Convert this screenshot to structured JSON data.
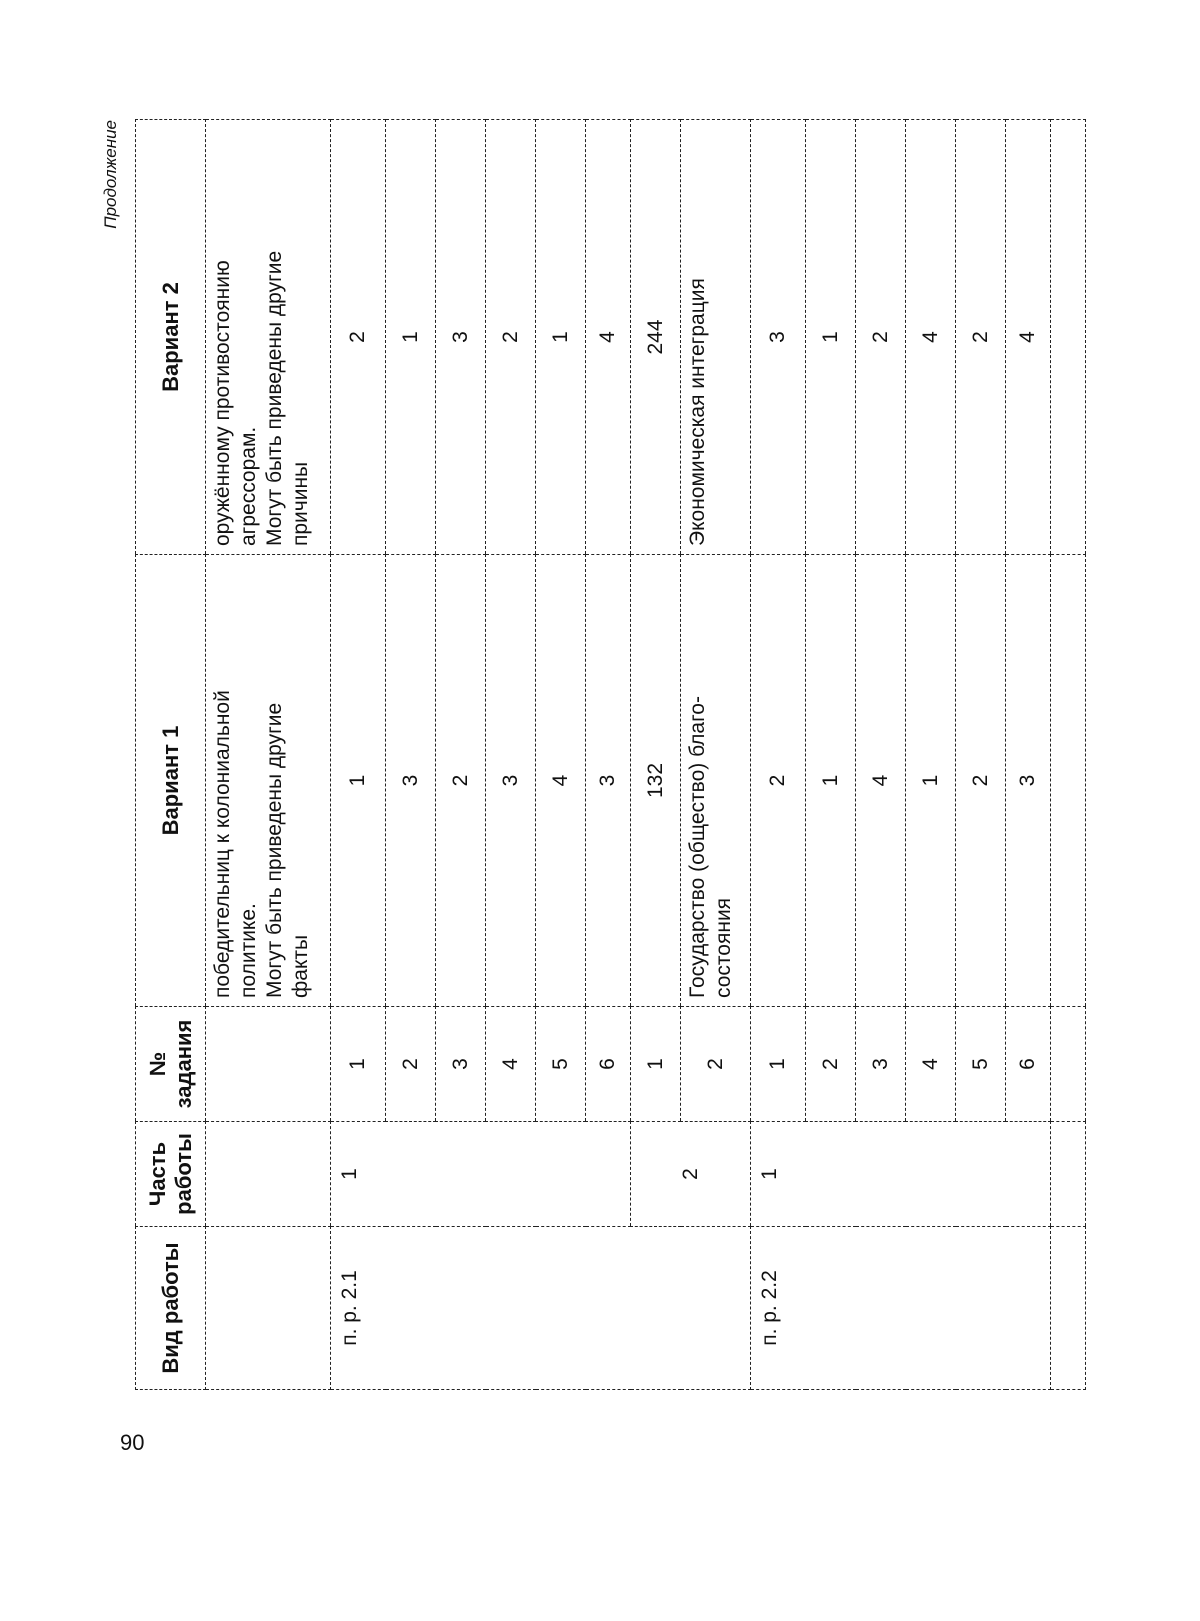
{
  "page_number": "90",
  "continuation_label": "Продолжение",
  "headers": [
    "Вид работы",
    "Часть работы",
    "№ задания",
    "Вариант 1",
    "Вариант 2"
  ],
  "continuation_row": {
    "variant1": "победительниц к колониальной\nполитике.\nМогут быть приведены другие\nфакты",
    "variant2": "оружённому противостоянию\nагрессорам.\nМогут быть приведены другие\nпричины"
  },
  "sections": [
    {
      "work_type": "п. р. 2.1",
      "parts": [
        {
          "part": "1",
          "tasks": [
            {
              "task": "1",
              "v1": "1",
              "v2": "2"
            },
            {
              "task": "2",
              "v1": "3",
              "v2": "1"
            },
            {
              "task": "3",
              "v1": "2",
              "v2": "3"
            },
            {
              "task": "4",
              "v1": "3",
              "v2": "2"
            },
            {
              "task": "5",
              "v1": "4",
              "v2": "1"
            },
            {
              "task": "6",
              "v1": "3",
              "v2": "4"
            }
          ]
        },
        {
          "part": "2",
          "tasks": [
            {
              "task": "1",
              "v1": "132",
              "v2": "244"
            },
            {
              "task": "2",
              "v1": "Государство (общество) благо-\nсостояния",
              "v2": "Экономическая интеграция"
            }
          ]
        }
      ]
    },
    {
      "work_type": "п. р. 2.2",
      "parts": [
        {
          "part": "1",
          "tasks": [
            {
              "task": "1",
              "v1": "2",
              "v2": "3"
            },
            {
              "task": "2",
              "v1": "1",
              "v2": "1"
            },
            {
              "task": "3",
              "v1": "4",
              "v2": "2"
            },
            {
              "task": "4",
              "v1": "1",
              "v2": "4"
            },
            {
              "task": "5",
              "v1": "2",
              "v2": "2"
            },
            {
              "task": "6",
              "v1": "3",
              "v2": "4"
            }
          ]
        }
      ]
    }
  ]
}
